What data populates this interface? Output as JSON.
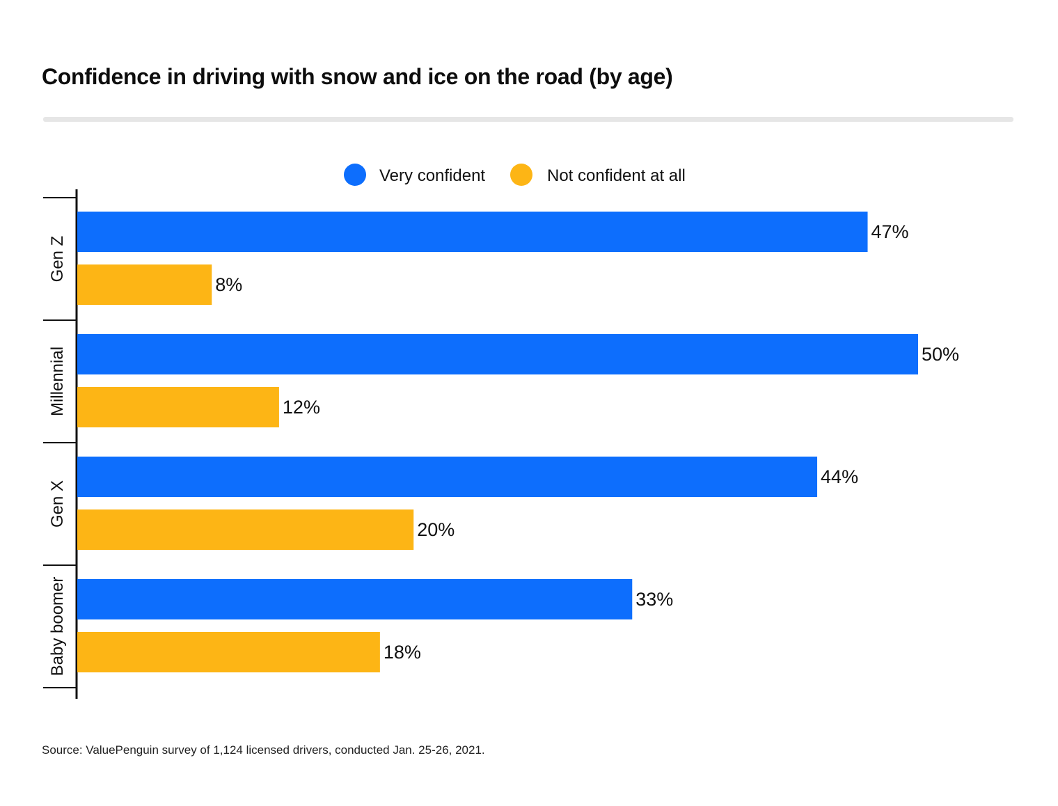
{
  "title": "Confidence in driving with snow and ice on the road (by age)",
  "source": "Source: ValuePenguin survey of 1,124 licensed drivers, conducted Jan. 25-26, 2021.",
  "colors": {
    "very_confident": "#0d6efd",
    "not_confident": "#fdb515",
    "axis": "#111111",
    "divider": "#e6e6e6"
  },
  "chart_data": {
    "type": "bar",
    "orientation": "horizontal",
    "categories": [
      "Gen Z",
      "Millennial",
      "Gen X",
      "Baby boomer"
    ],
    "series": [
      {
        "name": "Very confident",
        "values": [
          47,
          50,
          44,
          33
        ],
        "labels": [
          "47%",
          "50%",
          "44%",
          "33%"
        ]
      },
      {
        "name": "Not confident at all",
        "values": [
          8,
          12,
          20,
          18
        ],
        "labels": [
          "8%",
          "12%",
          "20%",
          "18%"
        ]
      }
    ],
    "xlim": [
      0,
      50
    ],
    "unit": "%",
    "legend": "top-center",
    "grid": false
  }
}
